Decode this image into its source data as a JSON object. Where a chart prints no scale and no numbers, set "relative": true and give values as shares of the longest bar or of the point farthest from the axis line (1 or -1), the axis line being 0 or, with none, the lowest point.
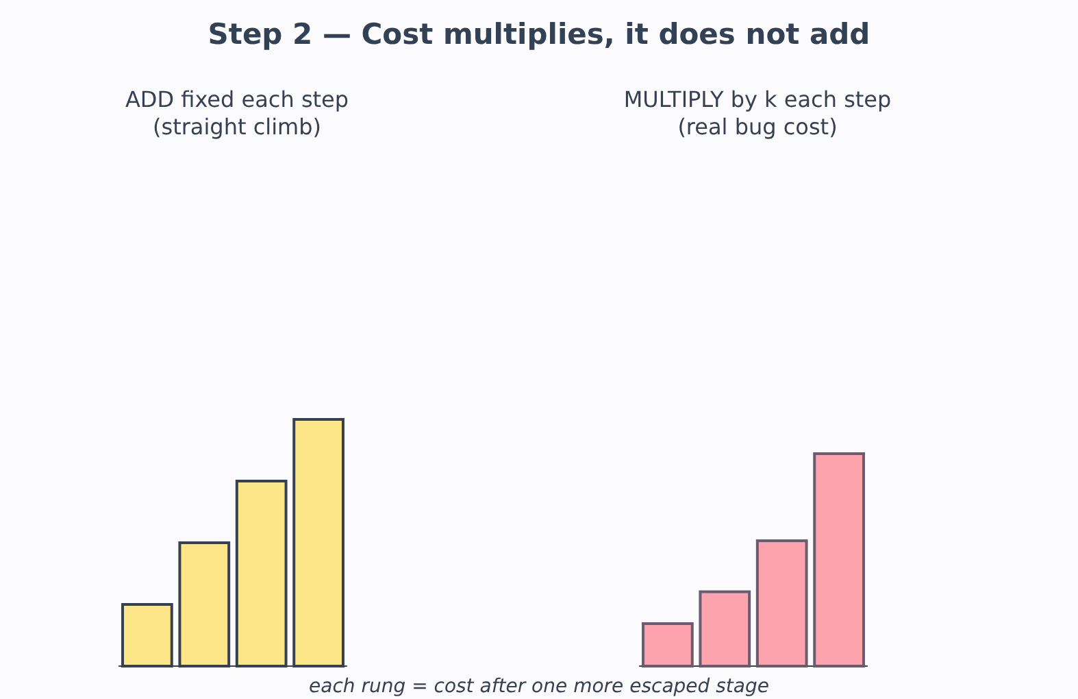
{
  "chart_data": [
    {
      "type": "bar",
      "title": "Step 2 — Cost multiplies, it does not add",
      "subtitle": "ADD fixed each step\n(straight climb)",
      "categories": [
        null,
        null,
        null,
        null
      ],
      "values": [
        0.25,
        0.5,
        0.75,
        1
      ],
      "color": "#fde68a",
      "relative": true,
      "annotations": [
        "each rung = cost after one more escaped stage"
      ]
    },
    {
      "type": "bar",
      "subtitle": "MULTIPLY by k each step\n(real bug cost)",
      "categories": [
        null,
        null,
        null,
        null
      ],
      "values": [
        0.2,
        0.35,
        0.59,
        1
      ],
      "color": "#fda4af",
      "relative": true
    }
  ]
}
